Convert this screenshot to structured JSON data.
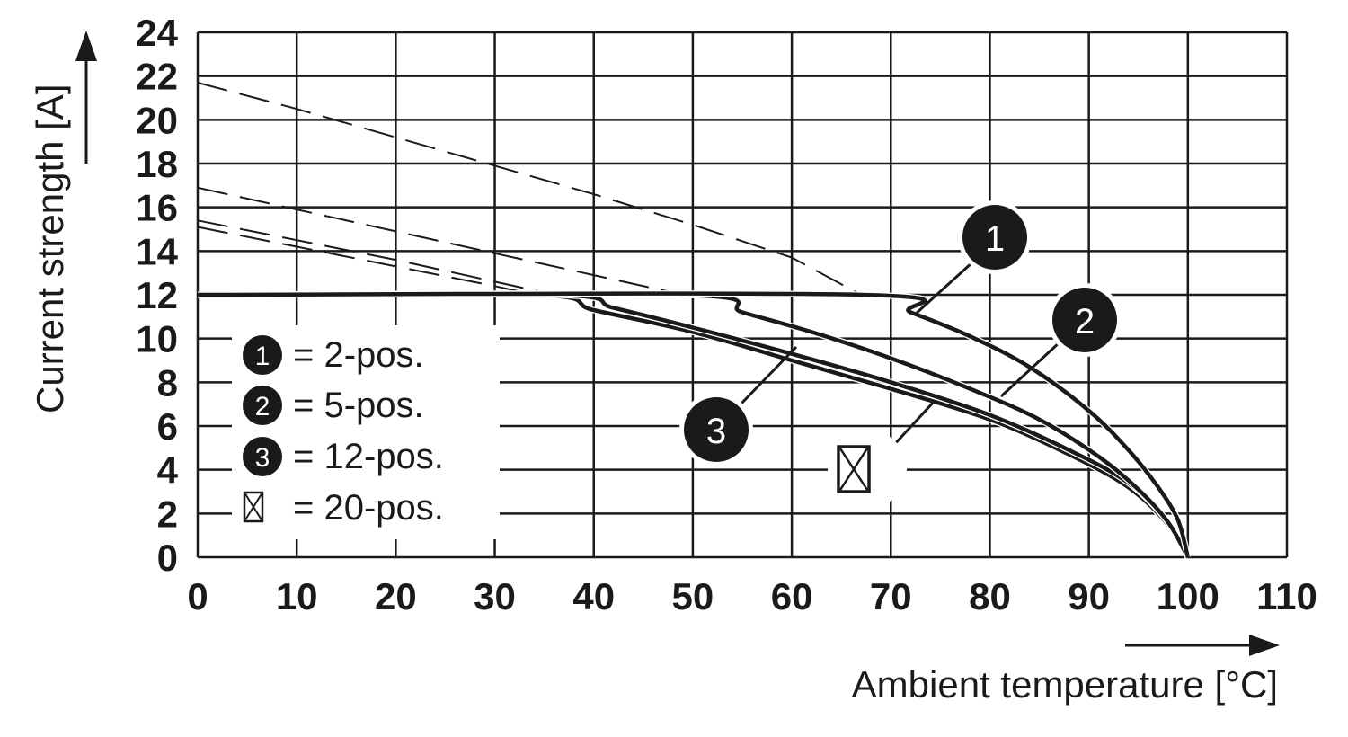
{
  "chart_data": {
    "type": "line",
    "xlabel": "Ambient temperature [°C]",
    "ylabel": "Current strength [A]",
    "xlim": [
      0,
      110
    ],
    "ylim": [
      0,
      24
    ],
    "xticks": [
      "0",
      "10",
      "20",
      "30",
      "40",
      "50",
      "60",
      "70",
      "80",
      "90",
      "100",
      "110"
    ],
    "yticks": [
      "0",
      "2",
      "4",
      "6",
      "8",
      "10",
      "12",
      "14",
      "16",
      "18",
      "20",
      "22",
      "24"
    ],
    "grid": true,
    "legend_position": "lower-left",
    "series": [
      {
        "name": "2-pos.",
        "badge": "1",
        "plateau": 12,
        "points": [
          [
            0,
            12
          ],
          [
            67,
            12
          ],
          [
            72,
            11.2
          ],
          [
            78,
            10.1
          ],
          [
            84,
            8.7
          ],
          [
            90,
            6.7
          ],
          [
            94,
            4.9
          ],
          [
            97,
            3.2
          ],
          [
            99,
            1.7
          ],
          [
            100,
            0
          ]
        ],
        "extrapolated": [
          [
            0,
            21.7
          ],
          [
            10,
            20.5
          ],
          [
            20,
            19.2
          ],
          [
            30,
            17.9
          ],
          [
            40,
            16.6
          ],
          [
            50,
            15.2
          ],
          [
            60,
            13.7
          ],
          [
            67,
            12
          ]
        ]
      },
      {
        "name": "5-pos.",
        "badge": "2",
        "plateau": 12,
        "points": [
          [
            0,
            12
          ],
          [
            49,
            12
          ],
          [
            55,
            11.2
          ],
          [
            62,
            10.3
          ],
          [
            70,
            9.1
          ],
          [
            78,
            7.7
          ],
          [
            85,
            6.3
          ],
          [
            91,
            4.6
          ],
          [
            95,
            3.1
          ],
          [
            98,
            1.6
          ],
          [
            100,
            0
          ]
        ],
        "extrapolated": [
          [
            0,
            16.9
          ],
          [
            10,
            15.9
          ],
          [
            20,
            14.9
          ],
          [
            30,
            13.9
          ],
          [
            40,
            12.9
          ],
          [
            49,
            12
          ]
        ]
      },
      {
        "name": "12-pos.",
        "badge": "3",
        "plateau": 12,
        "points": [
          [
            0,
            12
          ],
          [
            36,
            12
          ],
          [
            42,
            11.4
          ],
          [
            50,
            10.5
          ],
          [
            60,
            9.3
          ],
          [
            70,
            8.0
          ],
          [
            80,
            6.5
          ],
          [
            88,
            4.9
          ],
          [
            94,
            3.4
          ],
          [
            98,
            1.6
          ],
          [
            100,
            0
          ]
        ],
        "extrapolated": [
          [
            0,
            15.4
          ],
          [
            10,
            14.5
          ],
          [
            20,
            13.6
          ],
          [
            30,
            12.6
          ],
          [
            36,
            12
          ]
        ]
      },
      {
        "name": "20-pos.",
        "badge": "⊠",
        "plateau": 12,
        "points": [
          [
            0,
            12
          ],
          [
            34,
            12
          ],
          [
            40,
            11.3
          ],
          [
            50,
            10.3
          ],
          [
            60,
            9.0
          ],
          [
            70,
            7.7
          ],
          [
            80,
            6.3
          ],
          [
            88,
            4.7
          ],
          [
            94,
            3.2
          ],
          [
            98,
            1.5
          ],
          [
            100,
            0
          ]
        ],
        "extrapolated": [
          [
            0,
            15.1
          ],
          [
            10,
            14.2
          ],
          [
            20,
            13.3
          ],
          [
            30,
            12.4
          ],
          [
            34,
            12
          ]
        ]
      }
    ]
  },
  "legend": {
    "items": [
      {
        "badge": "1",
        "label": "= 2-pos."
      },
      {
        "badge": "2",
        "label": "= 5-pos."
      },
      {
        "badge": "3",
        "label": "= 12-pos."
      },
      {
        "badge": "⊠",
        "label": "= 20-pos."
      }
    ]
  },
  "callouts": {
    "c1": "1",
    "c2": "2",
    "c3": "3"
  },
  "colors": {
    "line": "#1a1a1a",
    "grid": "#1a1a1a",
    "background": "#ffffff"
  }
}
